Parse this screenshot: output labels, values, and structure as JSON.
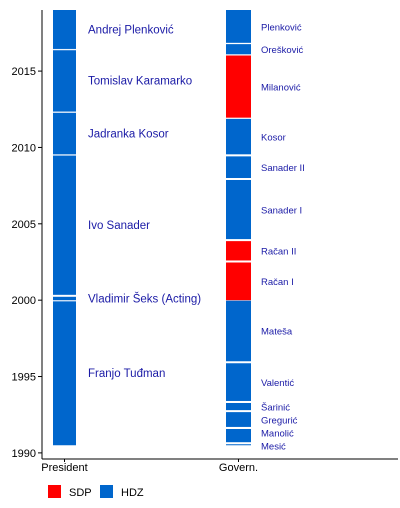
{
  "chart_data": {
    "type": "timeline",
    "title": "",
    "xlabel": "",
    "ylabel": "",
    "ylim": [
      1989.6,
      2019.0
    ],
    "y_ticks": [
      1990,
      1995,
      2000,
      2005,
      2010,
      2015
    ],
    "categories": [
      "President",
      "Govern."
    ],
    "party_colors": {
      "SDP": "#ff0000",
      "HDZ": "#0066cc"
    },
    "legend": [
      {
        "party": "SDP",
        "color": "#ff0000"
      },
      {
        "party": "HDZ",
        "color": "#0066cc"
      }
    ],
    "legend_placement": "bottom-left",
    "grid": false,
    "series": [
      {
        "name": "President",
        "segments": [
          {
            "label": "Franjo Tuđman",
            "start": 1990.5,
            "end": 1999.95,
            "party": "HDZ"
          },
          {
            "label": "Vladimir Šeks (Acting)",
            "start": 2000.0,
            "end": 2000.25,
            "party": "HDZ"
          },
          {
            "label": "Ivo Sanader",
            "start": 2000.35,
            "end": 2009.5,
            "party": "HDZ"
          },
          {
            "label": "Jadranka Kosor",
            "start": 2009.55,
            "end": 2012.3,
            "party": "HDZ"
          },
          {
            "label": "Tomislav Karamarko",
            "start": 2012.35,
            "end": 2016.4,
            "party": "HDZ"
          },
          {
            "label": "Andrej Plenković",
            "start": 2016.45,
            "end": 2019.0,
            "party": "HDZ"
          }
        ]
      },
      {
        "name": "Govern.",
        "segments": [
          {
            "label": "Mesić",
            "start": 1990.5,
            "end": 1990.6,
            "party": "HDZ"
          },
          {
            "label": "Manolić",
            "start": 1990.7,
            "end": 1991.6,
            "party": "HDZ"
          },
          {
            "label": "Gregurić",
            "start": 1991.7,
            "end": 1992.7,
            "party": "HDZ"
          },
          {
            "label": "Šarinić",
            "start": 1992.8,
            "end": 1993.3,
            "party": "HDZ"
          },
          {
            "label": "Valentić",
            "start": 1993.4,
            "end": 1995.9,
            "party": "HDZ"
          },
          {
            "label": "Mateša",
            "start": 1996.0,
            "end": 2000.0,
            "party": "HDZ"
          },
          {
            "label": "Račan I",
            "start": 2000.0,
            "end": 2002.5,
            "party": "SDP"
          },
          {
            "label": "Račan II",
            "start": 2002.6,
            "end": 2003.9,
            "party": "SDP"
          },
          {
            "label": "Sanader I",
            "start": 2004.0,
            "end": 2007.9,
            "party": "HDZ"
          },
          {
            "label": "Sanader II",
            "start": 2008.0,
            "end": 2009.45,
            "party": "HDZ"
          },
          {
            "label": "Kosor",
            "start": 2009.55,
            "end": 2011.9,
            "party": "HDZ"
          },
          {
            "label": "Milanović",
            "start": 2011.95,
            "end": 2016.05,
            "party": "SDP"
          },
          {
            "label": "Orešković",
            "start": 2016.1,
            "end": 2016.8,
            "party": "HDZ"
          },
          {
            "label": "Plenković",
            "start": 2016.85,
            "end": 2019.0,
            "party": "HDZ"
          }
        ]
      }
    ]
  }
}
